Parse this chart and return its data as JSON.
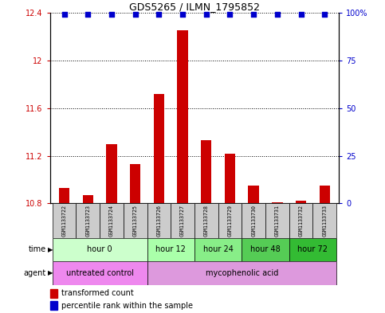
{
  "title": "GDS5265 / ILMN_1795852",
  "samples": [
    "GSM1133722",
    "GSM1133723",
    "GSM1133724",
    "GSM1133725",
    "GSM1133726",
    "GSM1133727",
    "GSM1133728",
    "GSM1133729",
    "GSM1133730",
    "GSM1133731",
    "GSM1133732",
    "GSM1133733"
  ],
  "bar_values": [
    10.93,
    10.87,
    11.3,
    11.13,
    11.72,
    12.25,
    11.33,
    11.22,
    10.95,
    10.81,
    10.82,
    10.95
  ],
  "percentile_values": [
    99,
    99,
    99,
    99,
    99,
    99,
    99,
    99,
    99,
    99,
    99,
    99
  ],
  "ylim_left": [
    10.8,
    12.4
  ],
  "ylim_right": [
    0,
    100
  ],
  "yticks_left": [
    10.8,
    11.2,
    11.6,
    12.0,
    12.4
  ],
  "ytick_left_labels": [
    "10.8",
    "11.2",
    "11.6",
    "12",
    "12.4"
  ],
  "yticks_right": [
    0,
    25,
    50,
    75,
    100
  ],
  "ytick_right_labels": [
    "0",
    "25",
    "50",
    "75",
    "100%"
  ],
  "bar_color": "#cc0000",
  "dot_color": "#0000cc",
  "bar_base": 10.8,
  "time_groups": [
    {
      "label": "hour 0",
      "start": 0,
      "end": 4,
      "color": "#ccffcc"
    },
    {
      "label": "hour 12",
      "start": 4,
      "end": 6,
      "color": "#aaffaa"
    },
    {
      "label": "hour 24",
      "start": 6,
      "end": 8,
      "color": "#88ee88"
    },
    {
      "label": "hour 48",
      "start": 8,
      "end": 10,
      "color": "#55cc55"
    },
    {
      "label": "hour 72",
      "start": 10,
      "end": 12,
      "color": "#33bb33"
    }
  ],
  "agent_groups": [
    {
      "label": "untreated control",
      "start": 0,
      "end": 4,
      "color": "#ee88ee"
    },
    {
      "label": "mycophenolic acid",
      "start": 4,
      "end": 12,
      "color": "#dd99dd"
    }
  ],
  "legend_bar_label": "transformed count",
  "legend_dot_label": "percentile rank within the sample",
  "label_time": "time",
  "label_agent": "agent",
  "dotted_grid_color": "#000000",
  "axis_color_left": "#cc0000",
  "axis_color_right": "#0000cc",
  "sample_box_color": "#cccccc"
}
